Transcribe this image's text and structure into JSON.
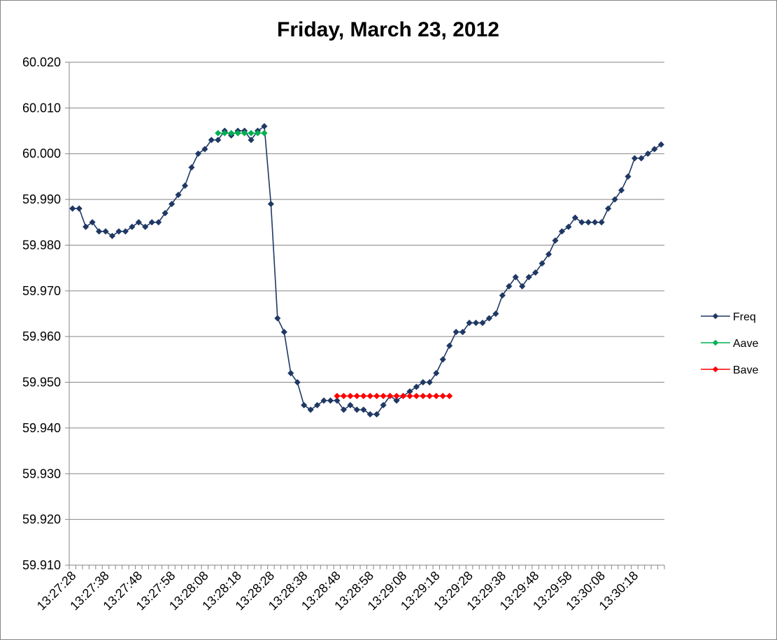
{
  "chart_data": {
    "type": "line",
    "title": "Friday, March 23, 2012",
    "xlabel": "",
    "ylabel": "",
    "ylim": [
      59.91,
      60.02
    ],
    "yticks": [
      "59.910",
      "59.920",
      "59.930",
      "59.940",
      "59.950",
      "59.960",
      "59.970",
      "59.980",
      "59.990",
      "60.000",
      "60.010",
      "60.020"
    ],
    "grid": true,
    "legend_position": "right",
    "x_tick_labels": [
      "13:27:28",
      "13:27:38",
      "13:27:48",
      "13:27:58",
      "13:28:08",
      "13:28:18",
      "13:28:28",
      "13:28:38",
      "13:28:48",
      "13:28:58",
      "13:29:08",
      "13:29:18",
      "13:29:28",
      "13:29:38",
      "13:29:48",
      "13:29:58",
      "13:30:08",
      "13:30:18"
    ],
    "x_tick_every": 5,
    "num_points": 90,
    "series": [
      {
        "name": "Freq",
        "color": "#1f3864",
        "start_index": 0,
        "values": [
          59.988,
          59.988,
          59.984,
          59.985,
          59.983,
          59.983,
          59.982,
          59.983,
          59.983,
          59.984,
          59.985,
          59.984,
          59.985,
          59.985,
          59.987,
          59.989,
          59.991,
          59.993,
          59.997,
          60.0,
          60.001,
          60.003,
          60.003,
          60.005,
          60.004,
          60.005,
          60.005,
          60.003,
          60.005,
          60.006,
          59.989,
          59.964,
          59.961,
          59.952,
          59.95,
          59.945,
          59.944,
          59.945,
          59.946,
          59.946,
          59.946,
          59.944,
          59.945,
          59.944,
          59.944,
          59.943,
          59.943,
          59.945,
          59.947,
          59.946,
          59.947,
          59.948,
          59.949,
          59.95,
          59.95,
          59.952,
          59.955,
          59.958,
          59.961,
          59.961,
          59.963,
          59.963,
          59.963,
          59.964,
          59.965,
          59.969,
          59.971,
          59.973,
          59.971,
          59.973,
          59.974,
          59.976,
          59.978,
          59.981,
          59.983,
          59.984,
          59.986,
          59.985,
          59.985,
          59.985,
          59.985,
          59.988,
          59.99,
          59.992,
          59.995,
          59.999,
          59.999,
          60.0,
          60.001,
          60.002
        ]
      },
      {
        "name": "Aave",
        "color": "#00b050",
        "start_index": 22,
        "values": [
          60.0045,
          60.0045,
          60.0045,
          60.0045,
          60.0045,
          60.0045,
          60.0045,
          60.0045
        ]
      },
      {
        "name": "Bave",
        "color": "#ff0000",
        "start_index": 40,
        "values": [
          59.947,
          59.947,
          59.947,
          59.947,
          59.947,
          59.947,
          59.947,
          59.947,
          59.947,
          59.947,
          59.947,
          59.947,
          59.947,
          59.947,
          59.947,
          59.947,
          59.947,
          59.947
        ]
      }
    ]
  }
}
